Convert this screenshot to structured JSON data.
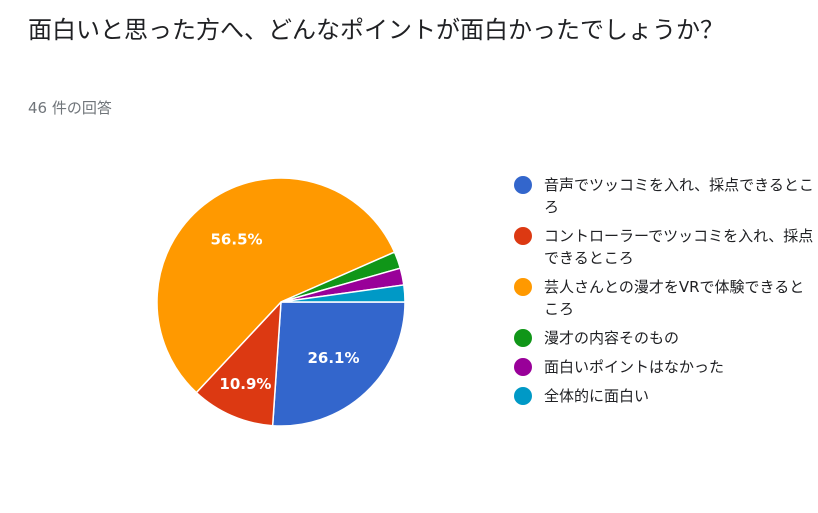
{
  "question": {
    "title": "面白いと思った方へ、どんなポイントが面白かったでしょうか？",
    "response_count": "46 件の回答"
  },
  "chart_data": {
    "type": "pie",
    "title": "",
    "slices": [
      {
        "label": "音声でツッコミを入れ、採点できるところ",
        "value": 26.1,
        "display": "26.1%",
        "color": "#3366cc"
      },
      {
        "label": "コントローラーでツッコミを入れ、採点できるところ",
        "value": 10.9,
        "display": "10.9%",
        "color": "#dc3912"
      },
      {
        "label": "芸人さんとの漫才をVRで体験できるところ",
        "value": 56.5,
        "display": "56.5%",
        "color": "#ff9900"
      },
      {
        "label": "漫才の内容そのもの",
        "value": 2.2,
        "display": "",
        "color": "#109618"
      },
      {
        "label": "面白いポイントはなかった",
        "value": 2.2,
        "display": "",
        "color": "#990099"
      },
      {
        "label": "全体的に面白い",
        "value": 2.2,
        "display": "",
        "color": "#0099c6"
      }
    ],
    "legend_position": "right"
  }
}
